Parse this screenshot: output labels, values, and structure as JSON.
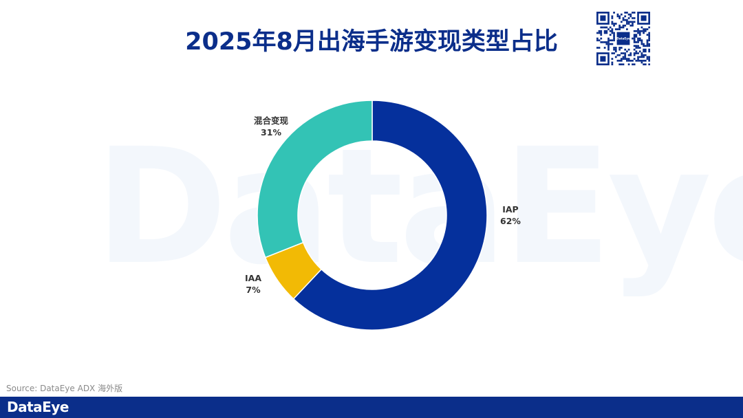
{
  "watermark_text": "DataEye",
  "title": "2025年8月出海手游变现类型占比",
  "qr_code": {
    "center_label": "DataEye"
  },
  "source": "Source: DataEye ADX 海外版",
  "footer": {
    "logo": "DataEye"
  },
  "colors": {
    "IAP": "#05309c",
    "IAA": "#f2ba05",
    "混合变现": "#33c3b5",
    "title": "#0b2e8a",
    "footer": "#0b2e8a"
  },
  "chart_data": {
    "type": "pie",
    "subtype": "donut",
    "title": "2025年8月出海手游变现类型占比",
    "slices": [
      {
        "name": "IAP",
        "value": 62,
        "label": "62%"
      },
      {
        "name": "IAA",
        "value": 7,
        "label": "7%"
      },
      {
        "name": "混合变现",
        "value": 31,
        "label": "31%"
      }
    ]
  }
}
